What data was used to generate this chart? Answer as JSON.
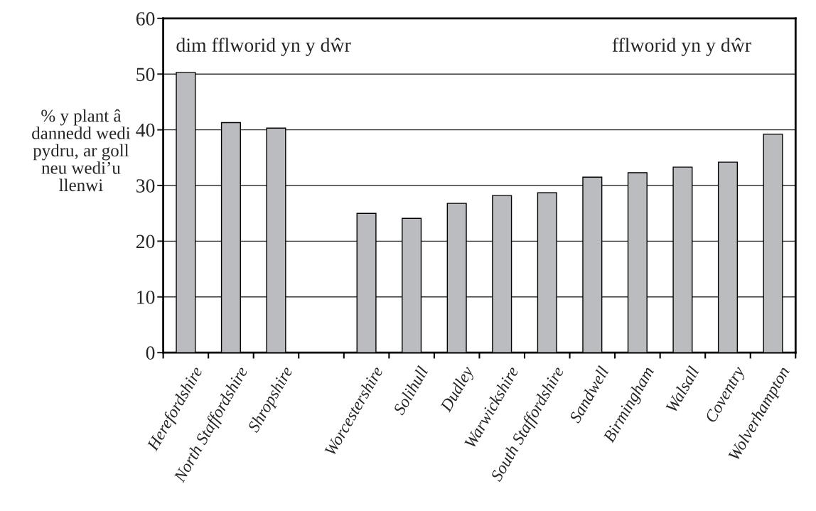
{
  "chart_data": {
    "type": "bar",
    "ylabel": "% y plant â\ndannedd wedi\npydru, ar goll\nneu wedi’u\nllenwi",
    "categories": [
      "Herefordshire",
      "North Staffordshire",
      "Shropshire",
      null,
      "Worcestershire",
      "Solihull",
      "Dudley",
      "Warwickshire",
      "South Staffordshire",
      "Sandwell",
      "Birmingham",
      "Walsall",
      "Coventry",
      "Wolverhampton"
    ],
    "values": [
      50.3,
      41.3,
      40.3,
      null,
      25.0,
      24.1,
      26.8,
      28.2,
      28.7,
      31.5,
      32.3,
      33.3,
      34.2,
      39.2
    ],
    "color": "#bbbcc0",
    "ylim": [
      0,
      60
    ],
    "yticks": [
      0,
      10,
      20,
      30,
      40,
      50,
      60
    ],
    "grid": "y",
    "annotations": [
      "dim fflworid yn y dŵr",
      "fflworid yn y dŵr"
    ]
  }
}
